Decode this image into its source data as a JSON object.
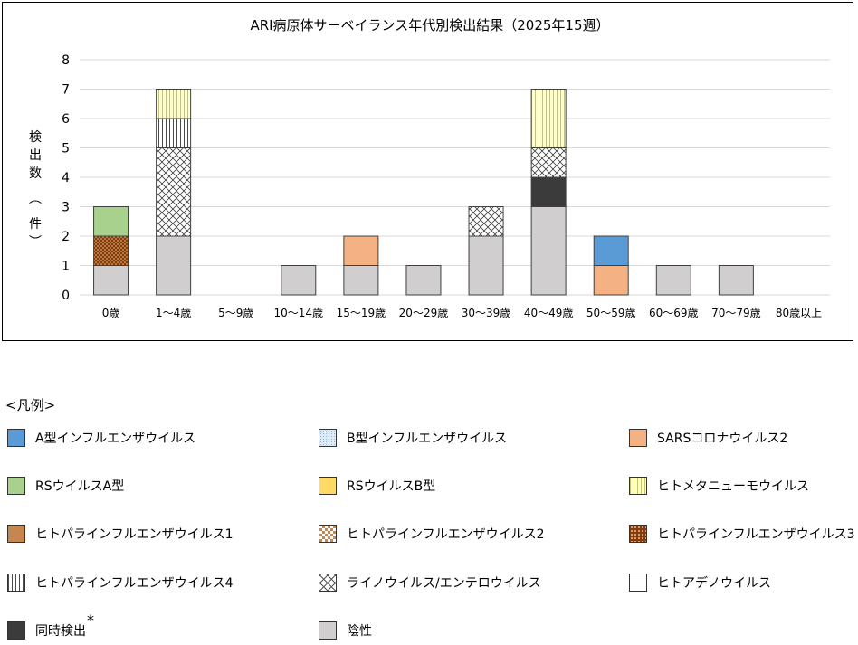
{
  "chart_data": {
    "type": "bar",
    "stacked": true,
    "title": "ARI病原体サーベイランス年代別検出結果（2025年15週）",
    "ylabel": "検出数（件）",
    "ylim": [
      0,
      8
    ],
    "yticks": [
      0,
      1,
      2,
      3,
      4,
      5,
      6,
      7,
      8
    ],
    "grid": true,
    "categories": [
      "0歳",
      "1～4歳",
      "5～9歳",
      "10～14歳",
      "15～19歳",
      "20～29歳",
      "30～39歳",
      "40～49歳",
      "50～59歳",
      "60～69歳",
      "70～79歳",
      "80歳以上"
    ],
    "series": [
      {
        "name": "陰性",
        "fill": "#d0cece",
        "pattern": "none",
        "values": [
          1,
          2,
          0,
          1,
          1,
          1,
          2,
          3,
          0,
          1,
          1,
          0
        ]
      },
      {
        "name": "同時検出",
        "fill": "#3b3b3b",
        "pattern": "none",
        "values": [
          0,
          0,
          0,
          0,
          0,
          0,
          0,
          1,
          0,
          0,
          0,
          0
        ]
      },
      {
        "name": "ヒトパラインフルエンザウイルス3",
        "fill": "#843c0c",
        "pattern": "dots",
        "values": [
          1,
          0,
          0,
          0,
          0,
          0,
          0,
          0,
          0,
          0,
          0,
          0
        ]
      },
      {
        "name": "SARSコロナウイルス2",
        "fill": "#f4b183",
        "pattern": "none",
        "values": [
          0,
          0,
          0,
          0,
          1,
          0,
          0,
          0,
          1,
          0,
          0,
          0
        ]
      },
      {
        "name": "A型インフルエンザウイルス",
        "fill": "#5b9bd5",
        "pattern": "none",
        "values": [
          0,
          0,
          0,
          0,
          0,
          0,
          0,
          0,
          1,
          0,
          0,
          0
        ]
      },
      {
        "name": "RSウイルスA型",
        "fill": "#a9d18e",
        "pattern": "none",
        "values": [
          1,
          0,
          0,
          0,
          0,
          0,
          0,
          0,
          0,
          0,
          0,
          0
        ]
      },
      {
        "name": "ライノウイルス/エンテロウイルス",
        "fill": "#ffffff",
        "pattern": "cross",
        "values": [
          0,
          3,
          0,
          0,
          0,
          0,
          1,
          1,
          0,
          0,
          0,
          0
        ]
      },
      {
        "name": "ヒトパラインフルエンザウイルス4",
        "fill": "#ffffff",
        "pattern": "vstripe-brown",
        "values": [
          0,
          1,
          0,
          0,
          0,
          0,
          0,
          0,
          0,
          0,
          0,
          0
        ]
      },
      {
        "name": "ヒトメタニューモウイルス",
        "fill": "#ffffcc",
        "pattern": "vstripe-yellow",
        "values": [
          0,
          1,
          0,
          0,
          0,
          0,
          0,
          2,
          0,
          0,
          0,
          0
        ]
      }
    ]
  },
  "legend": {
    "title": "<凡例>",
    "footnote_mark": "*",
    "items": [
      {
        "label": "A型インフルエンザウイルス",
        "fill": "#5b9bd5",
        "pattern": "none"
      },
      {
        "label": "B型インフルエンザウイルス",
        "fill": "#ddebf7",
        "pattern": "dots-blue"
      },
      {
        "label": "SARSコロナウイルス2",
        "fill": "#f4b183",
        "pattern": "none"
      },
      {
        "label": "RSウイルスA型",
        "fill": "#a9d18e",
        "pattern": "none"
      },
      {
        "label": "RSウイルスB型",
        "fill": "#ffd966",
        "pattern": "none"
      },
      {
        "label": "ヒトメタニューモウイルス",
        "fill": "#ffffcc",
        "pattern": "vstripe-yellow"
      },
      {
        "label": "ヒトパラインフルエンザウイルス1",
        "fill": "#c5874f",
        "pattern": "none"
      },
      {
        "label": "ヒトパラインフルエンザウイルス2",
        "fill": "#ffffff",
        "pattern": "checker-orange"
      },
      {
        "label": "ヒトパラインフルエンザウイルス3",
        "fill": "#843c0c",
        "pattern": "dots"
      },
      {
        "label": "ヒトパラインフルエンザウイルス4",
        "fill": "#ffffff",
        "pattern": "vstripe-brown"
      },
      {
        "label": "ライノウイルス/エンテロウイルス",
        "fill": "#ffffff",
        "pattern": "cross"
      },
      {
        "label": "ヒトアデノウイルス",
        "fill": "#ffffff",
        "pattern": "none"
      },
      {
        "label": "同時検出",
        "fill": "#3b3b3b",
        "pattern": "none"
      },
      {
        "label": "陰性",
        "fill": "#d0cece",
        "pattern": "none"
      }
    ]
  }
}
